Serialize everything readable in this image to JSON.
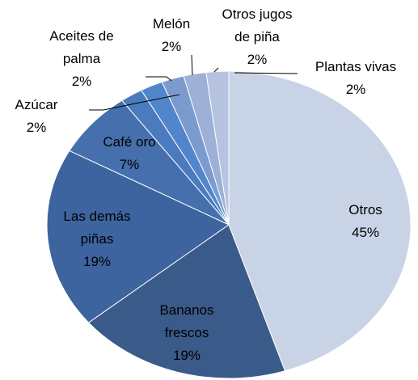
{
  "chart_data": {
    "type": "pie",
    "categories": [
      "Otros",
      "Bananos frescos",
      "Las demás piñas",
      "Café oro",
      "Azúcar",
      "Aceites de palma",
      "Melón",
      "Otros jugos de piña",
      "Plantas vivas"
    ],
    "values": [
      45,
      19,
      19,
      7,
      2,
      2,
      2,
      2,
      2
    ],
    "value_labels": [
      "45%",
      "19%",
      "19%",
      "7%",
      "2%",
      "2%",
      "2%",
      "2%",
      "2%"
    ],
    "colors": [
      "#c9d3e6",
      "#3a5a8a",
      "#3e64a0",
      "#4570ad",
      "#4a7bbf",
      "#5286cb",
      "#7b9bcf",
      "#9cb0d8",
      "#b5c3e1"
    ]
  }
}
